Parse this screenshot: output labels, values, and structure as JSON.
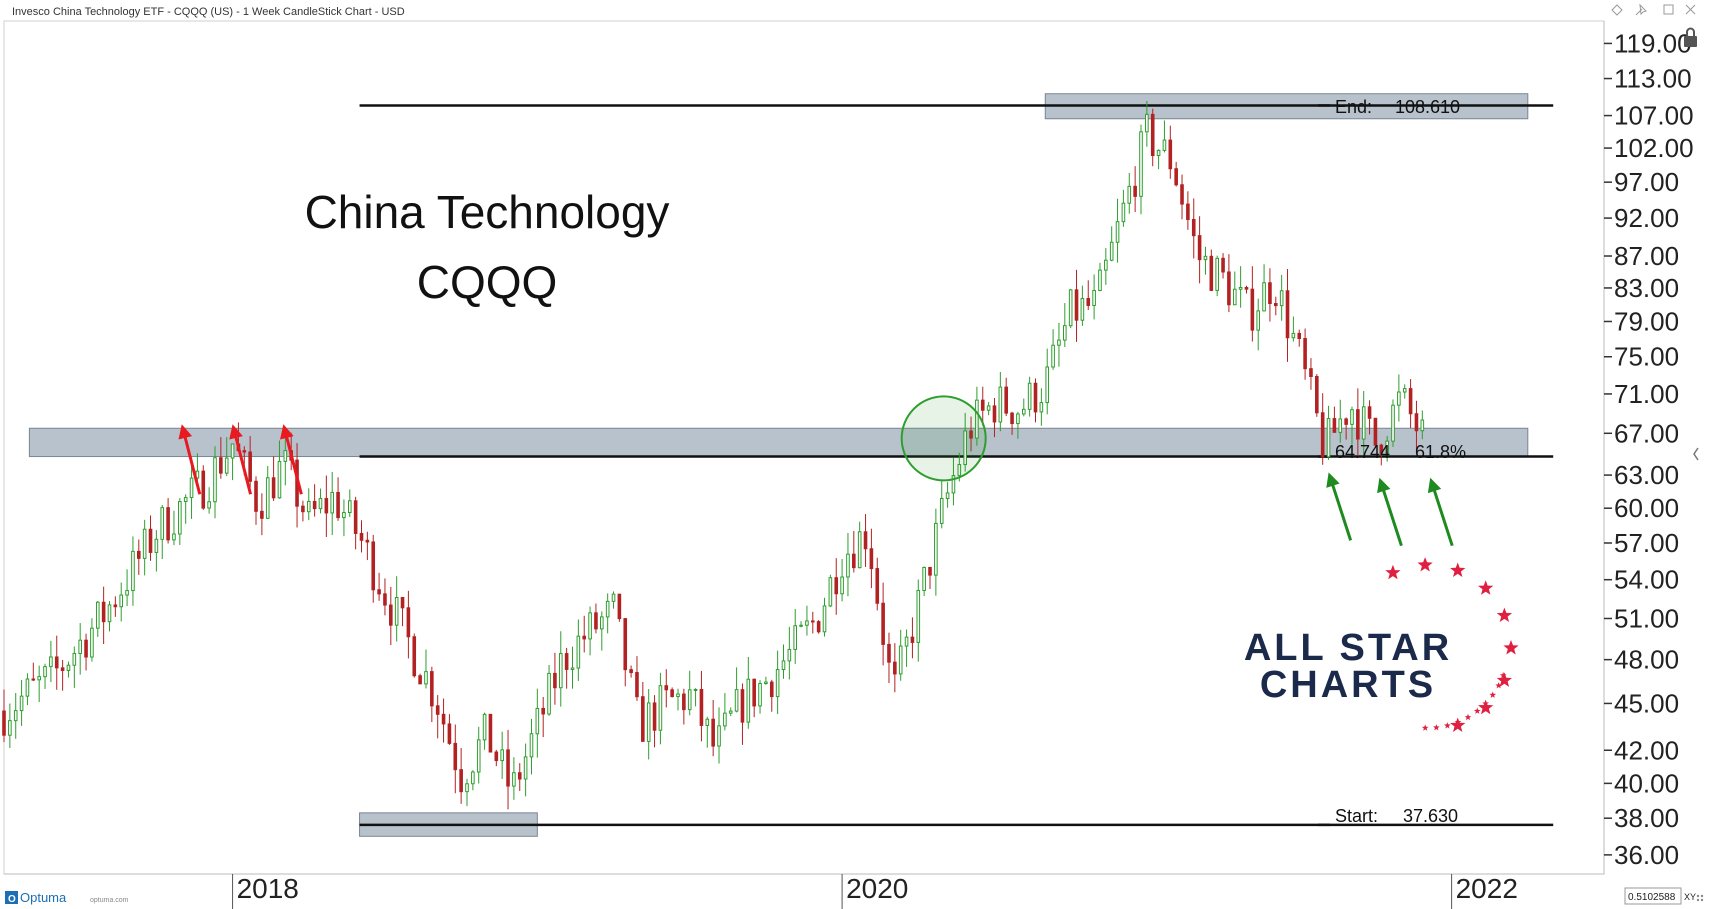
{
  "window": {
    "title": "Invesco China Technology ETF - CQQQ (US) - 1 Week CandleStick Chart - USD",
    "scale_readout": "0.5102588",
    "scale_suffix": "XY",
    "brand": "Optuma",
    "brand_url": "optuma.com"
  },
  "colors": {
    "up": "#2e9e2e",
    "down": "#b22222",
    "band_fill": "#b8c2cc",
    "red_arrow": "#e8191f",
    "green_arrow": "#1f8a1f",
    "logo_text": "#1b2a4a",
    "logo_star": "#e02040"
  },
  "logo": {
    "line1": "ALL STAR",
    "line2": "CHARTS"
  },
  "chart_data": {
    "type": "candlestick",
    "title": "China Technology",
    "subtitle": "CQQQ",
    "scale": "log",
    "ylim": [
      35,
      123
    ],
    "xlim": [
      "2017-04",
      "2022-07"
    ],
    "x_ticks": [
      {
        "date": "2018-01",
        "label": "2018"
      },
      {
        "date": "2020-01",
        "label": "2020"
      },
      {
        "date": "2022-01",
        "label": "2022"
      }
    ],
    "y_ticks": [
      119.0,
      113.0,
      107.0,
      102.0,
      97.0,
      92.0,
      87.0,
      83.0,
      79.0,
      75.0,
      71.0,
      67.0,
      63.0,
      60.0,
      57.0,
      54.0,
      51.0,
      48.0,
      45.0,
      42.0,
      40.0,
      38.0,
      36.0
    ],
    "y_tick_labels": [
      "119.00",
      "113.00",
      "107.00",
      "102.00",
      "97.00",
      "92.00",
      "87.00",
      "83.00",
      "79.00",
      "75.00",
      "71.00",
      "67.00",
      "63.00",
      "60.00",
      "57.00",
      "54.00",
      "51.00",
      "48.00",
      "45.00",
      "42.00",
      "40.00",
      "38.00",
      "36.00"
    ],
    "levels": [
      {
        "label": "End:",
        "value_text": "108.610",
        "pct_text": "",
        "value": 108.61,
        "start": "2018-06",
        "end": "2022-05"
      },
      {
        "label": "64.744",
        "value_text": "",
        "pct_text": "61.8%",
        "value": 64.744,
        "start": "2018-06",
        "end": "2022-05"
      },
      {
        "label": "Start:",
        "value_text": "37.630",
        "pct_text": "",
        "value": 37.63,
        "start": "2018-06",
        "end": "2022-05"
      }
    ],
    "zones": [
      {
        "start": "2020-09",
        "end": "2022-04",
        "low": 106.5,
        "high": 110.5
      },
      {
        "start": "2017-05",
        "end": "2022-04",
        "low": 64.744,
        "high": 67.5
      },
      {
        "start": "2018-06",
        "end": "2019-01",
        "low": 37.0,
        "high": 38.3
      }
    ],
    "circle": {
      "date": "2020-05",
      "value": 66.5
    },
    "red_arrows": [
      {
        "date": "2017-11",
        "value": 67.5
      },
      {
        "date": "2018-01",
        "value": 67.5
      },
      {
        "date": "2018-03",
        "value": 67.5
      }
    ],
    "green_arrows": [
      {
        "date": "2021-08",
        "value": 64.0
      },
      {
        "date": "2021-10",
        "value": 63.5
      },
      {
        "date": "2021-12",
        "value": 63.5
      }
    ],
    "close_path": [
      [
        "2017-04",
        44.5
      ],
      [
        "2017-06",
        47.0
      ],
      [
        "2017-08",
        51.5
      ],
      [
        "2017-10",
        58.0
      ],
      [
        "2017-12",
        62.5
      ],
      [
        "2018-01",
        66.0
      ],
      [
        "2018-02",
        60.5
      ],
      [
        "2018-03",
        64.0
      ],
      [
        "2018-04",
        59.0
      ],
      [
        "2018-05",
        61.0
      ],
      [
        "2018-06",
        57.5
      ],
      [
        "2018-07",
        53.0
      ],
      [
        "2018-08",
        49.0
      ],
      [
        "2018-09",
        45.5
      ],
      [
        "2018-10",
        40.5
      ],
      [
        "2018-11",
        43.0
      ],
      [
        "2018-12",
        39.5
      ],
      [
        "2019-01",
        43.5
      ],
      [
        "2019-02",
        48.0
      ],
      [
        "2019-03",
        50.0
      ],
      [
        "2019-04",
        51.5
      ],
      [
        "2019-05",
        43.5
      ],
      [
        "2019-06",
        45.0
      ],
      [
        "2019-07",
        45.5
      ],
      [
        "2019-08",
        42.0
      ],
      [
        "2019-09",
        45.0
      ],
      [
        "2019-10",
        46.5
      ],
      [
        "2019-11",
        48.5
      ],
      [
        "2019-12",
        51.0
      ],
      [
        "2020-01",
        56.0
      ],
      [
        "2020-02",
        58.0
      ],
      [
        "2020-03",
        45.5
      ],
      [
        "2020-04",
        52.0
      ],
      [
        "2020-05",
        60.0
      ],
      [
        "2020-06",
        67.5
      ],
      [
        "2020-07",
        70.0
      ],
      [
        "2020-08",
        69.5
      ],
      [
        "2020-09",
        72.0
      ],
      [
        "2020-10",
        80.0
      ],
      [
        "2020-11",
        81.0
      ],
      [
        "2020-12",
        92.0
      ],
      [
        "2021-01",
        104.0
      ],
      [
        "2021-02",
        100.0
      ],
      [
        "2021-03",
        87.0
      ],
      [
        "2021-04",
        84.0
      ],
      [
        "2021-05",
        80.0
      ],
      [
        "2021-06",
        84.0
      ],
      [
        "2021-07",
        75.0
      ],
      [
        "2021-08",
        65.5
      ],
      [
        "2021-09",
        70.0
      ],
      [
        "2021-10",
        66.0
      ],
      [
        "2021-11",
        70.5
      ],
      [
        "2021-12",
        66.0
      ]
    ]
  }
}
